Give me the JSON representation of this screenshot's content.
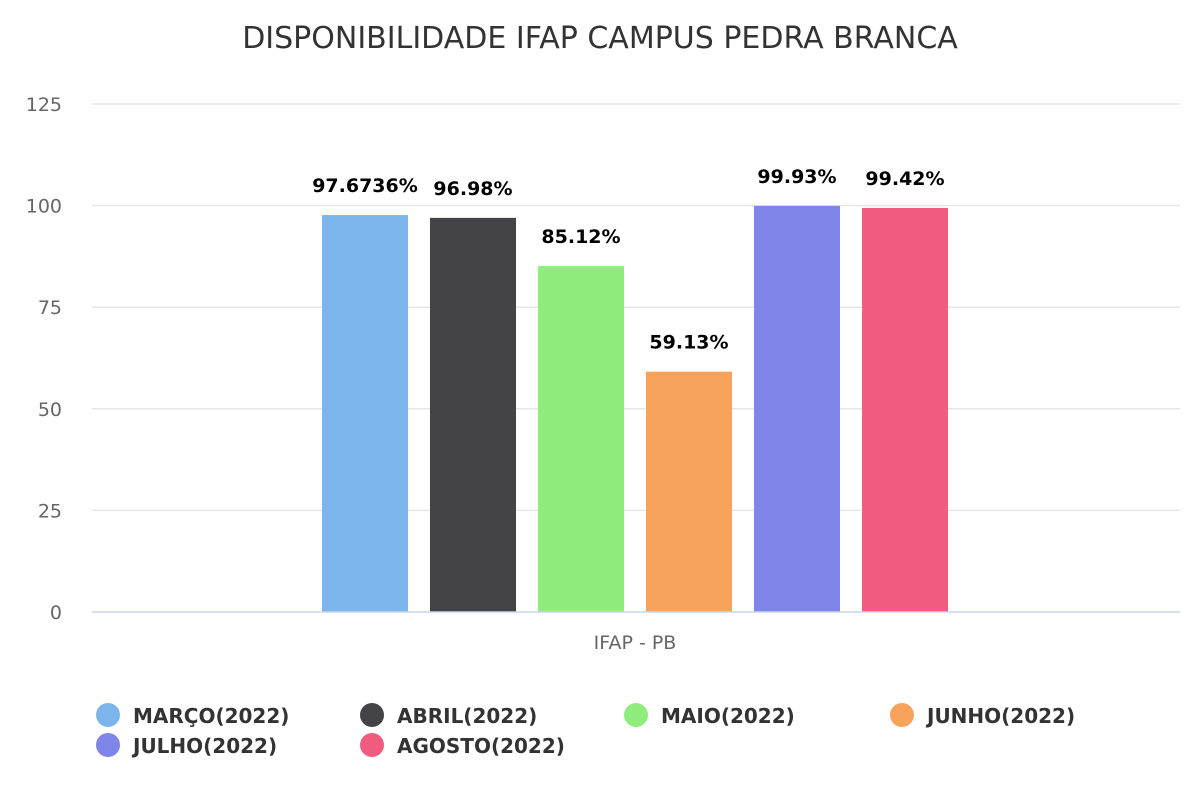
{
  "chart_data": {
    "type": "bar",
    "title": "DISPONIBILIDADE IFAP CAMPUS PEDRA BRANCA",
    "xlabel": "",
    "ylabel": "",
    "categories": [
      "IFAP - PB"
    ],
    "ylim": [
      0,
      125
    ],
    "yticks": [
      0,
      25,
      50,
      75,
      100,
      125
    ],
    "grid": true,
    "legend_position": "bottom",
    "series": [
      {
        "name": "MARÇO(2022)",
        "values": [
          97.6736
        ],
        "label": "97.6736%",
        "color": "#7cb5ec"
      },
      {
        "name": "ABRIL(2022)",
        "values": [
          96.98
        ],
        "label": "96.98%",
        "color": "#434348"
      },
      {
        "name": "MAIO(2022)",
        "values": [
          85.12
        ],
        "label": "85.12%",
        "color": "#90ed7d"
      },
      {
        "name": "JUNHO(2022)",
        "values": [
          59.13
        ],
        "label": "59.13%",
        "color": "#f7a35c"
      },
      {
        "name": "JULHO(2022)",
        "values": [
          99.93
        ],
        "label": "99.93%",
        "color": "#8085e9"
      },
      {
        "name": "AGOSTO(2022)",
        "values": [
          99.42
        ],
        "label": "99.42%",
        "color": "#f15c80"
      }
    ]
  }
}
